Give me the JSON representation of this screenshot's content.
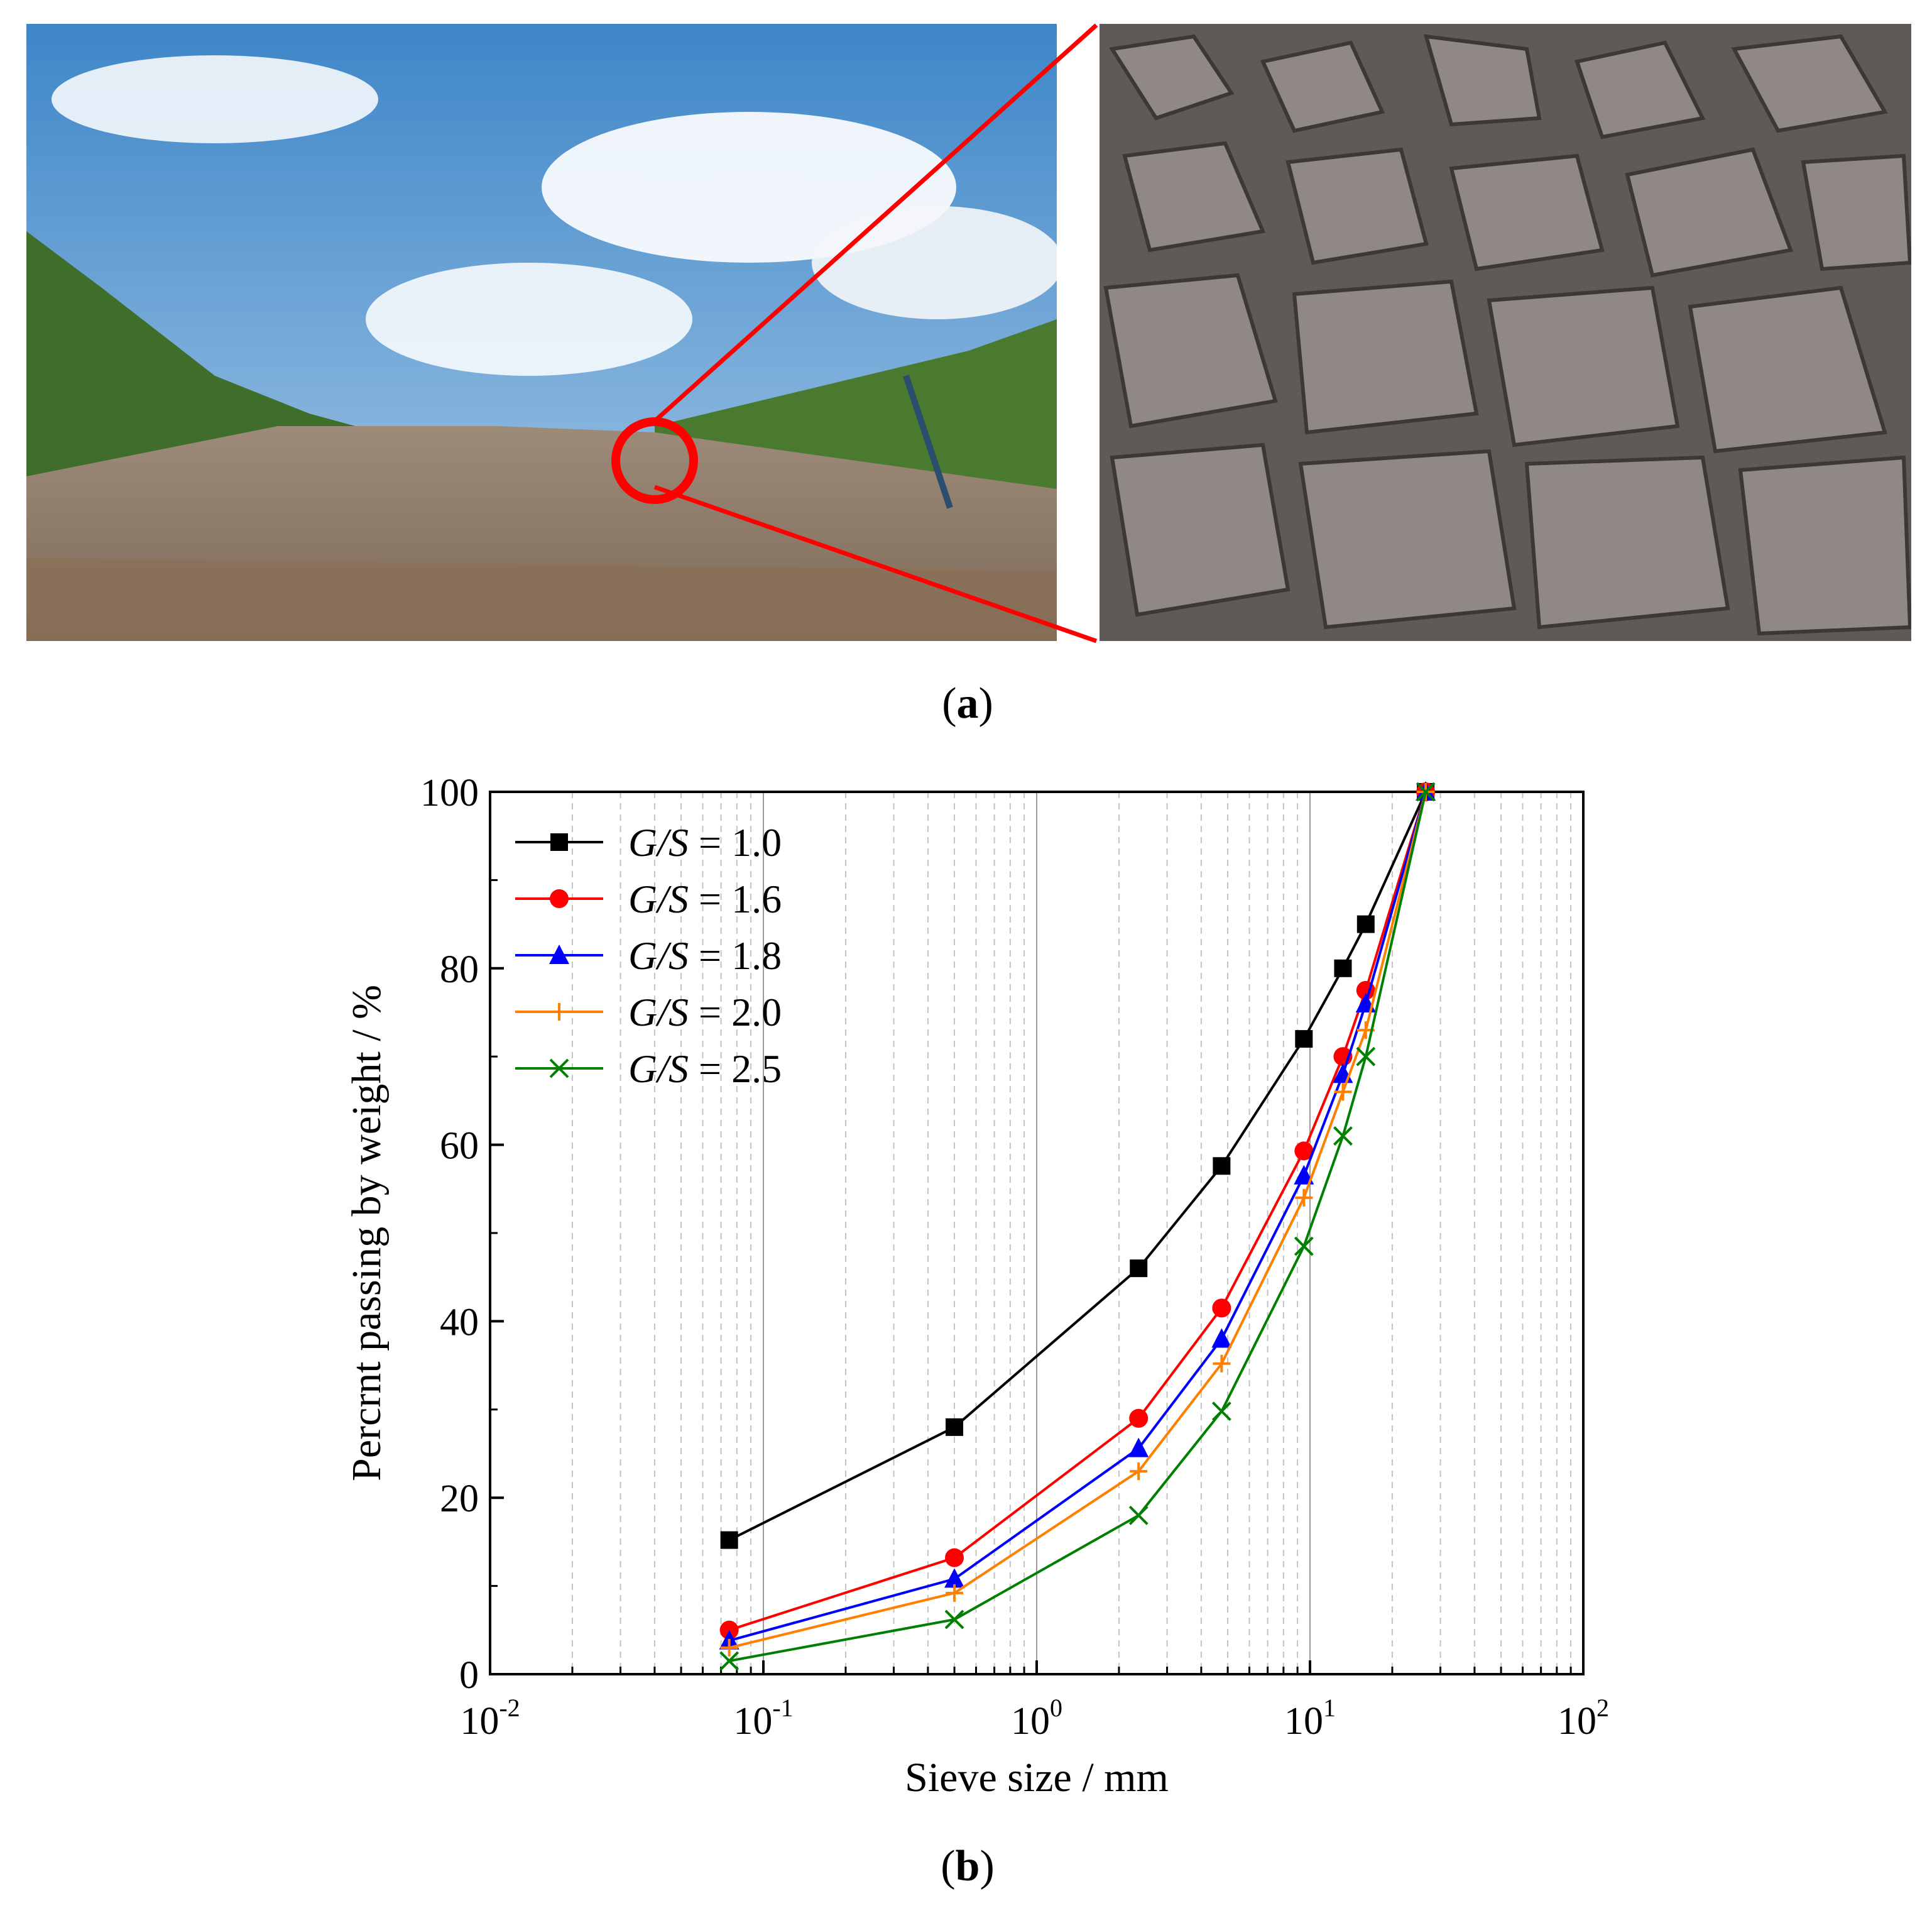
{
  "panel_a": {
    "caption_label": "a",
    "left_photo_desc": "landscape",
    "right_photo_desc": "rocks"
  },
  "panel_b": {
    "caption_label": "b"
  },
  "chart_data": {
    "type": "line",
    "xscale": "log",
    "xlabel": "Sieve size / mm",
    "ylabel": "Percrnt passing by weight / %",
    "xlim": [
      0.01,
      100
    ],
    "ylim": [
      0,
      100
    ],
    "xticks": [
      {
        "value": 0.01,
        "base": "10",
        "exp": "-2"
      },
      {
        "value": 0.1,
        "base": "10",
        "exp": "-1"
      },
      {
        "value": 1,
        "base": "10",
        "exp": "0"
      },
      {
        "value": 10,
        "base": "10",
        "exp": "1"
      },
      {
        "value": 100,
        "base": "10",
        "exp": "2"
      }
    ],
    "yticks": [
      "0",
      "20",
      "40",
      "60",
      "80",
      "100"
    ],
    "grid": true,
    "legend_position": "top-left",
    "x": [
      0.075,
      0.5,
      2.36,
      4.75,
      9.5,
      13.2,
      16,
      26.5
    ],
    "series": [
      {
        "name": "G/S = 1.0",
        "legend_italic": "G/S",
        "legend_rest": " = 1.0",
        "color": "#000000",
        "marker": "square",
        "values": [
          15.2,
          28,
          46,
          57.6,
          72,
          80,
          85,
          100
        ]
      },
      {
        "name": "G/S = 1.6",
        "legend_italic": "G/S",
        "legend_rest": " = 1.6",
        "color": "#ff0000",
        "marker": "circle",
        "values": [
          5,
          13.2,
          29,
          41.5,
          59.3,
          70,
          77.5,
          100
        ]
      },
      {
        "name": "G/S = 1.8",
        "legend_italic": "G/S",
        "legend_rest": " = 1.8",
        "color": "#0000ff",
        "marker": "triangle",
        "values": [
          3.8,
          10.8,
          25.6,
          38,
          56.5,
          68,
          76,
          100
        ]
      },
      {
        "name": "G/S = 2.0",
        "legend_italic": "G/S",
        "legend_rest": " = 2.0",
        "color": "#ff8000",
        "marker": "plus",
        "values": [
          3,
          9.2,
          23,
          35.2,
          54,
          66,
          73,
          100
        ]
      },
      {
        "name": "G/S = 2.5",
        "legend_italic": "G/S",
        "legend_rest": " = 2.5",
        "color": "#008000",
        "marker": "x",
        "values": [
          1.5,
          6.2,
          18,
          29.8,
          48.5,
          61,
          70,
          100
        ]
      }
    ]
  }
}
